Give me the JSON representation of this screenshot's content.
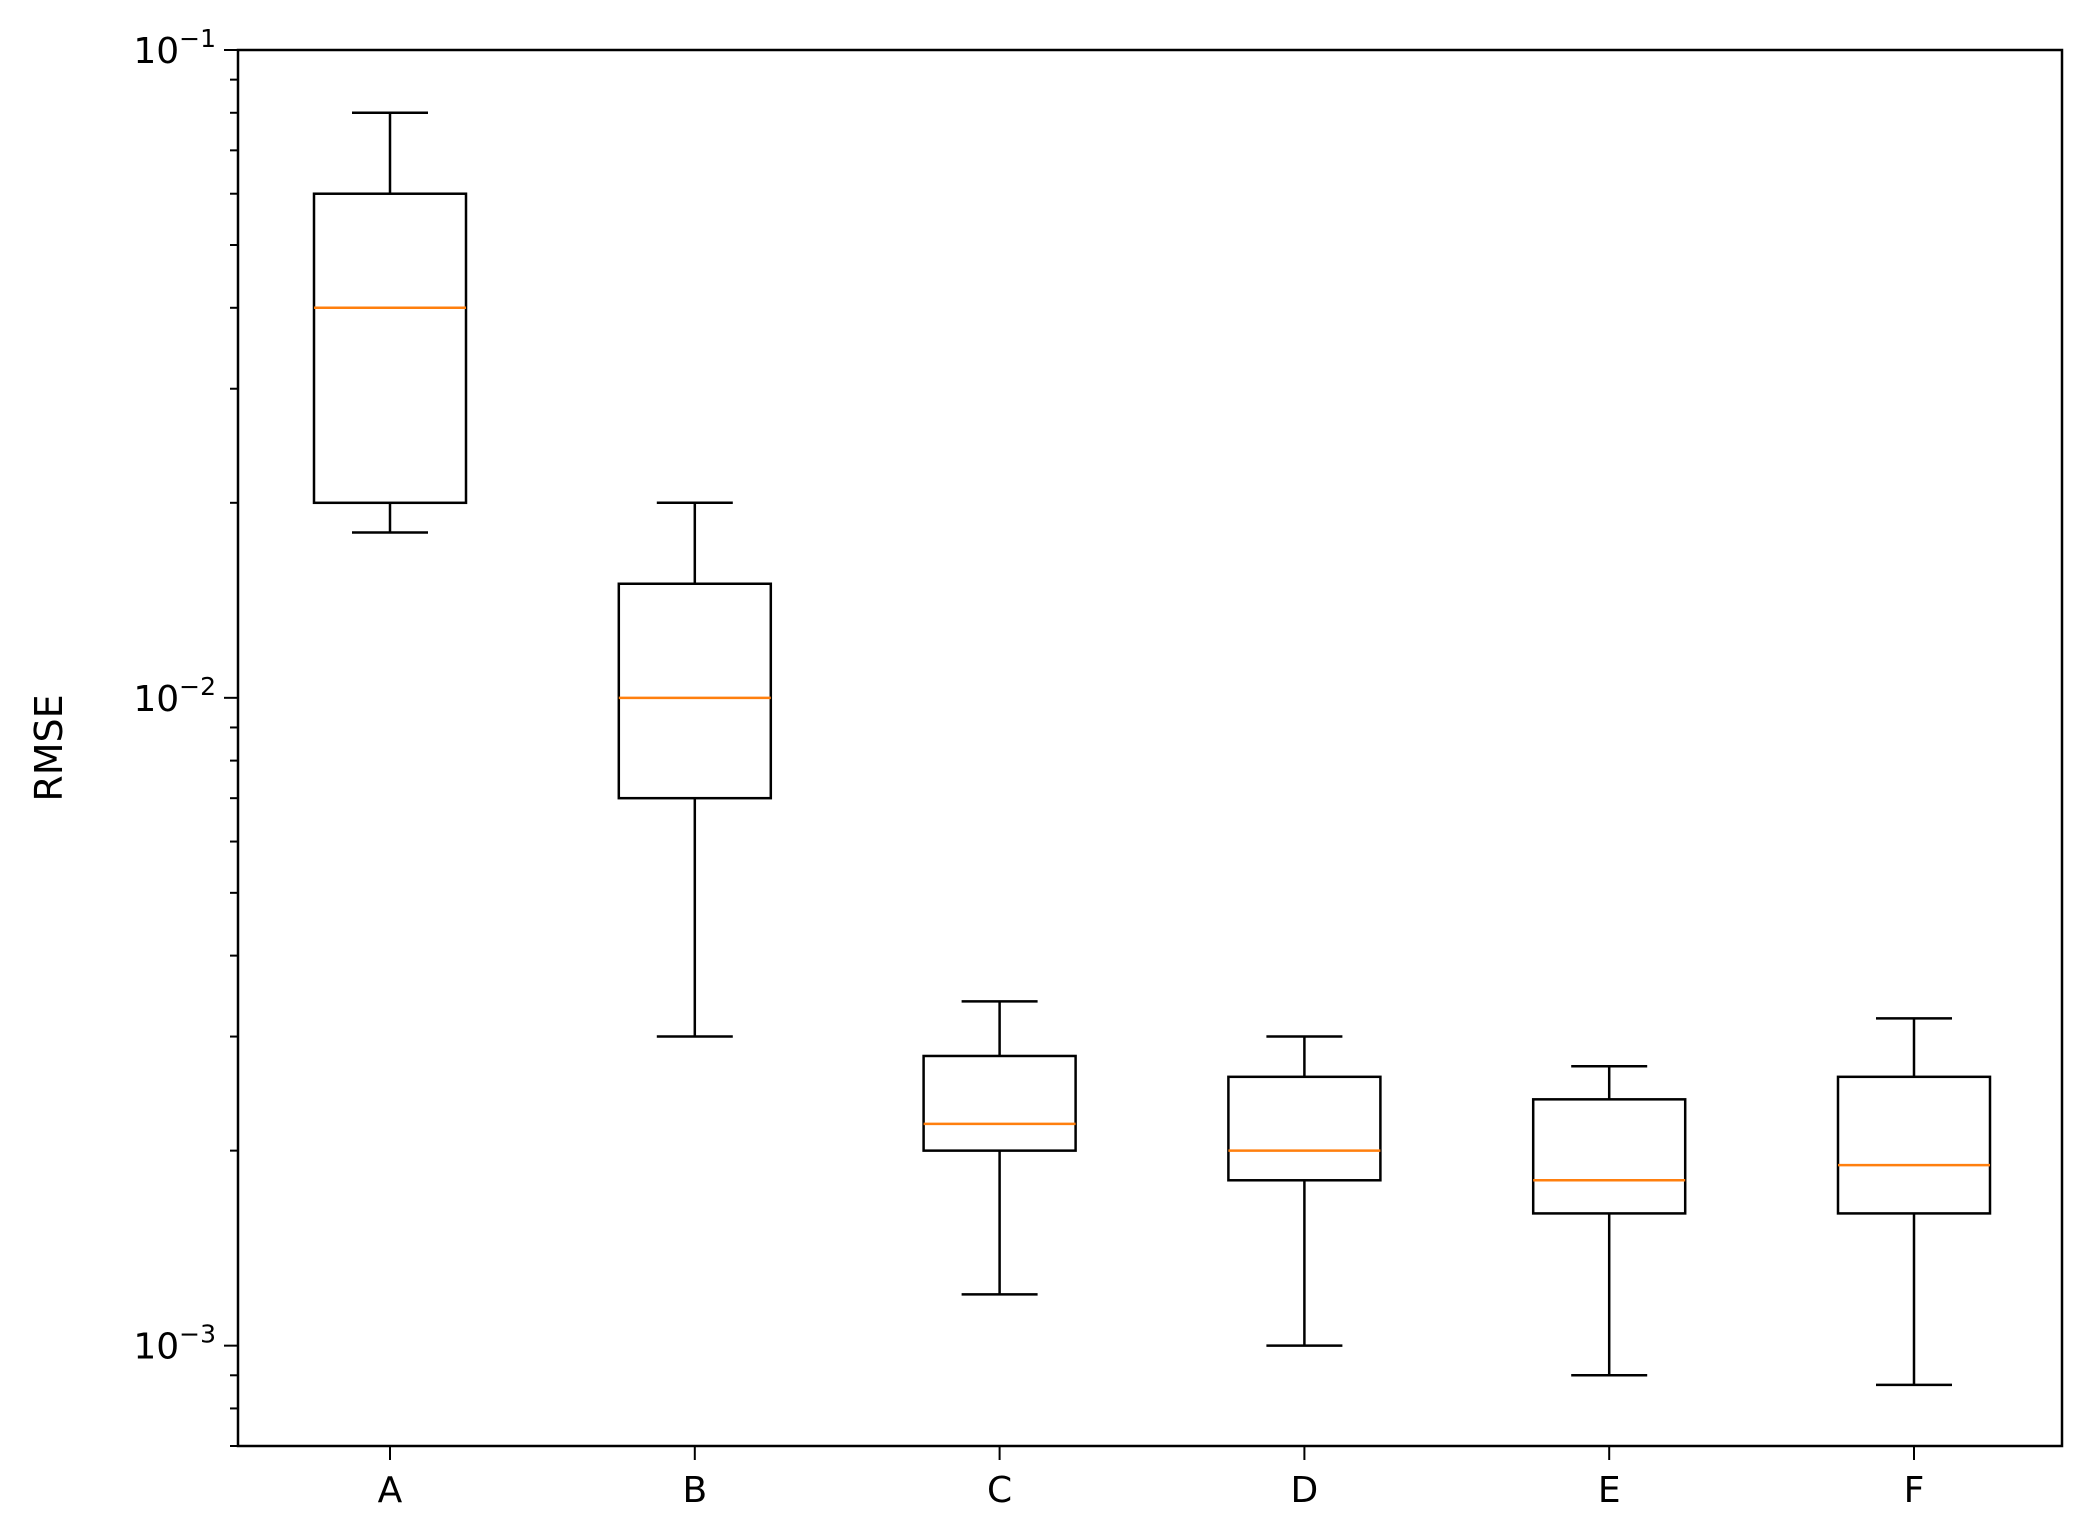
{
  "chart_data": {
    "type": "boxplot",
    "ylabel": "RMSE",
    "xlabel": "",
    "title": "",
    "yscale": "log",
    "ylim": [
      0.0007,
      0.1
    ],
    "y_major_ticks": [
      {
        "value": 0.1,
        "base": "10",
        "exp": "−1"
      },
      {
        "value": 0.01,
        "base": "10",
        "exp": "−2"
      },
      {
        "value": 0.001,
        "base": "10",
        "exp": "−3"
      }
    ],
    "grid": false,
    "legend": "none",
    "categories": [
      "A",
      "B",
      "C",
      "D",
      "E",
      "F"
    ],
    "boxes": [
      {
        "label": "A",
        "whisker_low": 0.018,
        "q1": 0.02,
        "median": 0.04,
        "q3": 0.06,
        "whisker_high": 0.08
      },
      {
        "label": "B",
        "whisker_low": 0.003,
        "q1": 0.007,
        "median": 0.01,
        "q3": 0.015,
        "whisker_high": 0.02
      },
      {
        "label": "C",
        "whisker_low": 0.0012,
        "q1": 0.002,
        "median": 0.0022,
        "q3": 0.0028,
        "whisker_high": 0.0034
      },
      {
        "label": "D",
        "whisker_low": 0.001,
        "q1": 0.0018,
        "median": 0.002,
        "q3": 0.0026,
        "whisker_high": 0.003
      },
      {
        "label": "E",
        "whisker_low": 0.0009,
        "q1": 0.0016,
        "median": 0.0018,
        "q3": 0.0024,
        "whisker_high": 0.0027
      },
      {
        "label": "F",
        "whisker_low": 0.00087,
        "q1": 0.0016,
        "median": 0.0019,
        "q3": 0.0026,
        "whisker_high": 0.0032
      }
    ],
    "colors": {
      "box": "#000000",
      "median": "#ff7f0e",
      "axes": "#000000"
    }
  }
}
